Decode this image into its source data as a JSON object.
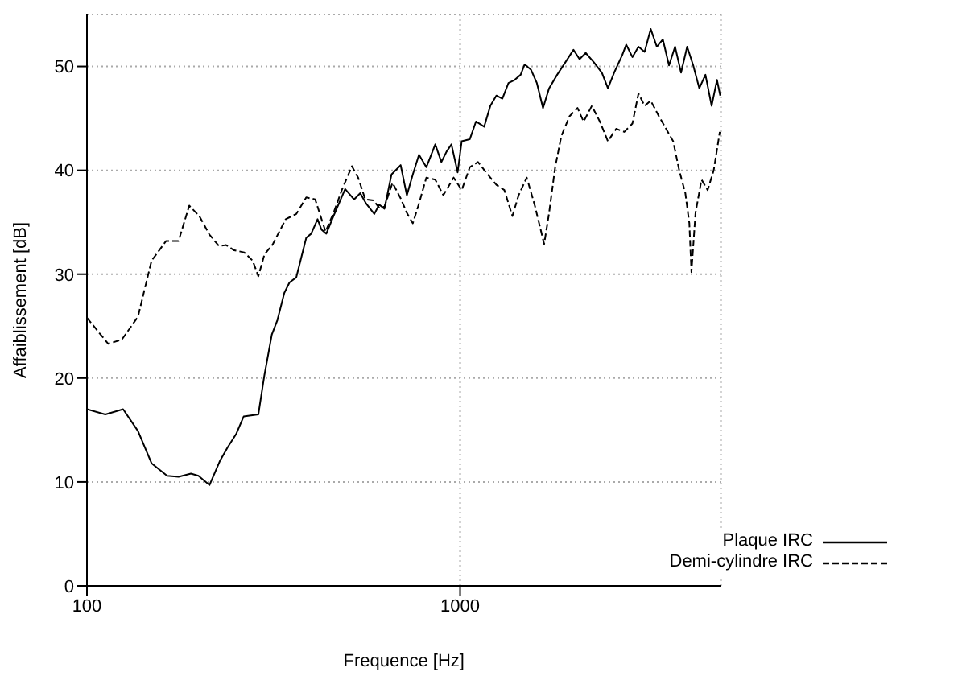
{
  "chart_data": {
    "type": "line",
    "xlabel": "Frequence [Hz]",
    "ylabel": "Affaiblissement [dB]",
    "log": "x",
    "grid": true,
    "legend": "bottom right",
    "marker": "none",
    "xlim": [
      100,
      5000
    ],
    "xticks": [
      100,
      1000
    ],
    "ylim": [
      0,
      55
    ],
    "yticks": [
      0,
      10,
      20,
      30,
      40,
      50
    ],
    "series": [
      {
        "name": "Plaque IRC",
        "color": "#000000",
        "line_style": "solid",
        "x": [
          100,
          112,
          125,
          137,
          149,
          164,
          176,
          190,
          199,
          213,
          227,
          238,
          251,
          263,
          288,
          299,
          313,
          324,
          338,
          349,
          364,
          387,
          399,
          415,
          425,
          438,
          458,
          492,
          520,
          540,
          560,
          589,
          607,
          627,
          655,
          693,
          720,
          747,
          776,
          812,
          858,
          891,
          920,
          948,
          985,
          1010,
          1062,
          1103,
          1160,
          1205,
          1251,
          1298,
          1348,
          1400,
          1453,
          1490,
          1548,
          1606,
          1668,
          1732,
          1820,
          1915,
          2013,
          2090,
          2171,
          2283,
          2399,
          2490,
          2587,
          2720,
          2788,
          2896,
          3007,
          3122,
          3243,
          3367,
          3495,
          3630,
          3768,
          3910,
          4060,
          4215,
          4377,
          4545,
          4722,
          4880,
          4980
        ],
        "values": [
          17.0,
          16.5,
          17.0,
          14.9,
          11.8,
          10.6,
          10.5,
          10.8,
          10.6,
          9.7,
          12.0,
          13.3,
          14.6,
          16.3,
          16.5,
          20.3,
          24.2,
          25.6,
          28.2,
          29.2,
          29.7,
          33.5,
          33.9,
          35.3,
          34.3,
          33.9,
          35.6,
          38.2,
          37.2,
          37.8,
          36.8,
          35.8,
          36.7,
          36.3,
          39.6,
          40.5,
          37.6,
          39.6,
          41.5,
          40.3,
          42.5,
          40.8,
          41.8,
          42.5,
          39.8,
          42.8,
          43.0,
          44.7,
          44.2,
          46.2,
          47.2,
          46.9,
          48.4,
          48.7,
          49.2,
          50.2,
          49.7,
          48.4,
          46.0,
          47.9,
          49.2,
          50.4,
          51.6,
          50.7,
          51.3,
          50.4,
          49.4,
          47.9,
          49.4,
          51.1,
          52.1,
          50.9,
          51.9,
          51.4,
          53.6,
          51.9,
          52.6,
          50.1,
          51.9,
          49.4,
          51.9,
          50.1,
          47.9,
          49.2,
          46.2,
          48.7,
          47.2
        ]
      },
      {
        "name": "Demi-cylindre IRC",
        "color": "#000000",
        "line_style": "dashed",
        "x": [
          100,
          114,
          124,
          137,
          149,
          163,
          176,
          188,
          200,
          213,
          226,
          236,
          248,
          264,
          278,
          288,
          299,
          315,
          341,
          364,
          387,
          409,
          436,
          458,
          482,
          513,
          533,
          557,
          586,
          607,
          627,
          659,
          693,
          720,
          747,
          776,
          812,
          858,
          902,
          961,
          1010,
          1062,
          1117,
          1174,
          1251,
          1314,
          1381,
          1435,
          1509,
          1586,
          1680,
          1732,
          1798,
          1868,
          1964,
          2064,
          2143,
          2254,
          2369,
          2490,
          2620,
          2755,
          2896,
          3007,
          3122,
          3243,
          3411,
          3540,
          3724,
          3866,
          4015,
          4115,
          4169,
          4275,
          4437,
          4607,
          4783,
          4966
        ],
        "values": [
          25.8,
          23.3,
          23.7,
          25.9,
          31.3,
          33.2,
          33.2,
          36.6,
          35.6,
          33.8,
          32.7,
          32.8,
          32.3,
          32.1,
          31.3,
          29.8,
          31.9,
          32.9,
          35.3,
          35.8,
          37.4,
          37.2,
          34.1,
          35.9,
          38.1,
          40.4,
          39.3,
          37.2,
          37.1,
          36.4,
          36.5,
          38.8,
          37.3,
          35.9,
          34.9,
          36.8,
          39.3,
          39.1,
          37.6,
          39.3,
          38.1,
          40.3,
          40.8,
          39.8,
          38.6,
          38.1,
          35.6,
          37.6,
          39.3,
          36.6,
          32.9,
          35.9,
          40.3,
          43.3,
          45.2,
          46.0,
          44.7,
          46.2,
          44.7,
          42.8,
          44.0,
          43.7,
          44.5,
          47.4,
          46.2,
          46.7,
          45.2,
          44.2,
          42.8,
          40.0,
          37.8,
          34.9,
          30.2,
          35.9,
          39.1,
          38.1,
          40.0,
          43.7
        ]
      }
    ]
  }
}
